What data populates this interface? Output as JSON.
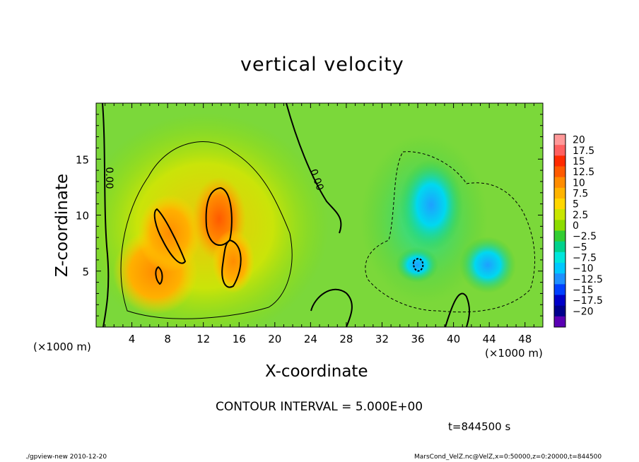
{
  "chart_data": {
    "type": "heatmap",
    "title": "vertical velocity",
    "xlabel": "X-coordinate",
    "ylabel": "Z-coordinate",
    "x_unit": "(×1000 m)",
    "y_unit": "(×1000 m)",
    "xlim": [
      0,
      50
    ],
    "ylim": [
      0,
      20
    ],
    "x_ticks": [
      4,
      8,
      12,
      16,
      20,
      24,
      28,
      32,
      36,
      40,
      44,
      48
    ],
    "y_ticks": [
      5,
      10,
      15
    ],
    "colorbar": {
      "levels": [
        20,
        17.5,
        15,
        12.5,
        10,
        7.5,
        5,
        2.5,
        0,
        -2.5,
        -5,
        -7.5,
        -10,
        -12.5,
        -15,
        -17.5,
        -20
      ],
      "colors": [
        "#ff9999",
        "#ff6060",
        "#ff2a00",
        "#ff5a00",
        "#ff8c00",
        "#ffb400",
        "#ffd700",
        "#c8e600",
        "#8cdc00",
        "#32cd32",
        "#00d28c",
        "#00e6dc",
        "#00c8ff",
        "#1e90ff",
        "#0040ff",
        "#0000c8",
        "#00008c",
        "#5a00b4"
      ]
    },
    "contour_labels": [
      "0.00",
      "0.00"
    ],
    "contour_interval_text": "CONTOUR INTERVAL = 5.000E+00",
    "time_text": "t=844500  s"
  },
  "footer": {
    "left": "./gpview-new   2010-12-20",
    "right": "MarsCond_VelZ.nc@VelZ,x=0:50000,z=0:20000,t=844500"
  }
}
